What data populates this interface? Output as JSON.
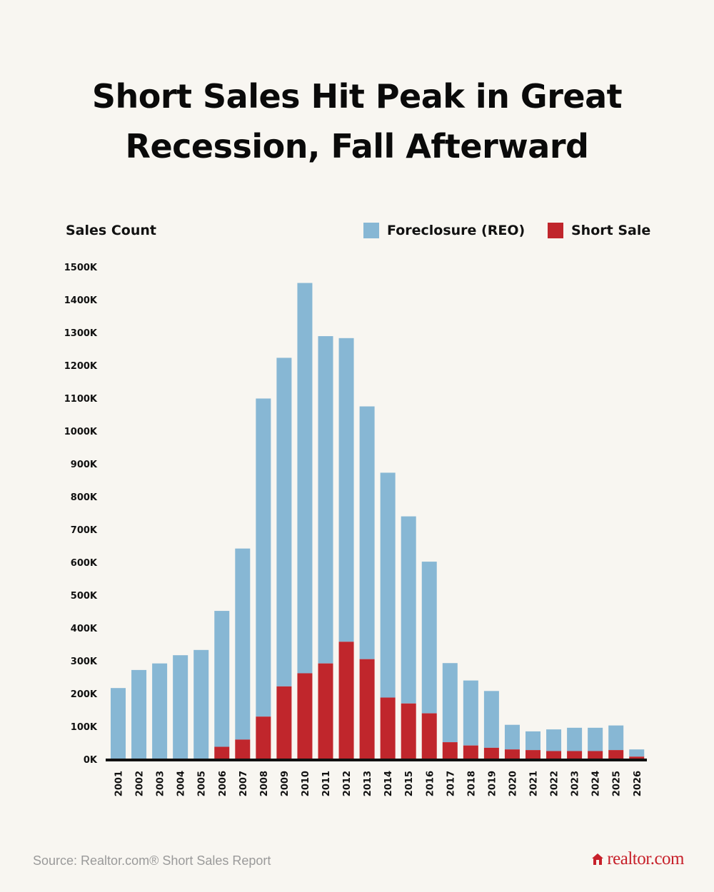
{
  "title_lines": [
    "Short Sales Hit Peak in Great",
    "Recession, Fall Afterward"
  ],
  "footer": {
    "source": "Source: Realtor.com® Short Sales Report",
    "logo_text": "realtor.com"
  },
  "colors": {
    "foreclosure": "#87b7d4",
    "short_sale": "#c0262c",
    "baseline": "#111111",
    "background": "#f8f6f1"
  },
  "chart_data": {
    "type": "bar",
    "stacked": true,
    "ylabel": "Sales Count",
    "ylim": [
      0,
      1500000
    ],
    "yticks": [
      0,
      100000,
      200000,
      300000,
      400000,
      500000,
      600000,
      700000,
      800000,
      900000,
      1000000,
      1100000,
      1200000,
      1300000,
      1400000,
      1500000
    ],
    "ytick_labels": [
      "0K",
      "100K",
      "200K",
      "300K",
      "400K",
      "500K",
      "600K",
      "700K",
      "800K",
      "900K",
      "1000K",
      "1100K",
      "1200K",
      "1300K",
      "1400K",
      "1500K"
    ],
    "legend_position": "top-right",
    "categories": [
      "2001",
      "2002",
      "2003",
      "2004",
      "2005",
      "2006",
      "2007",
      "2008",
      "2009",
      "2010",
      "2011",
      "2012",
      "2013",
      "2014",
      "2015",
      "2016",
      "2017",
      "2018",
      "2019",
      "2020",
      "2021",
      "2022",
      "2023",
      "2024",
      "2025",
      "2026"
    ],
    "series": [
      {
        "name": "Short Sale",
        "color": "#c0262c",
        "values": [
          0,
          0,
          0,
          0,
          0,
          38000,
          60000,
          130000,
          222000,
          262000,
          292000,
          358000,
          305000,
          188000,
          170000,
          140000,
          52000,
          42000,
          35000,
          30000,
          28000,
          25000,
          25000,
          25000,
          28000,
          8000
        ]
      },
      {
        "name": "Foreclosure (REO)",
        "color": "#87b7d4",
        "values": [
          217000,
          272000,
          292000,
          317000,
          333000,
          414000,
          582000,
          969000,
          1001000,
          1189000,
          997000,
          925000,
          770000,
          685000,
          570000,
          462000,
          241000,
          198000,
          173000,
          75000,
          57000,
          66000,
          71000,
          71000,
          75000,
          22000
        ]
      }
    ]
  }
}
